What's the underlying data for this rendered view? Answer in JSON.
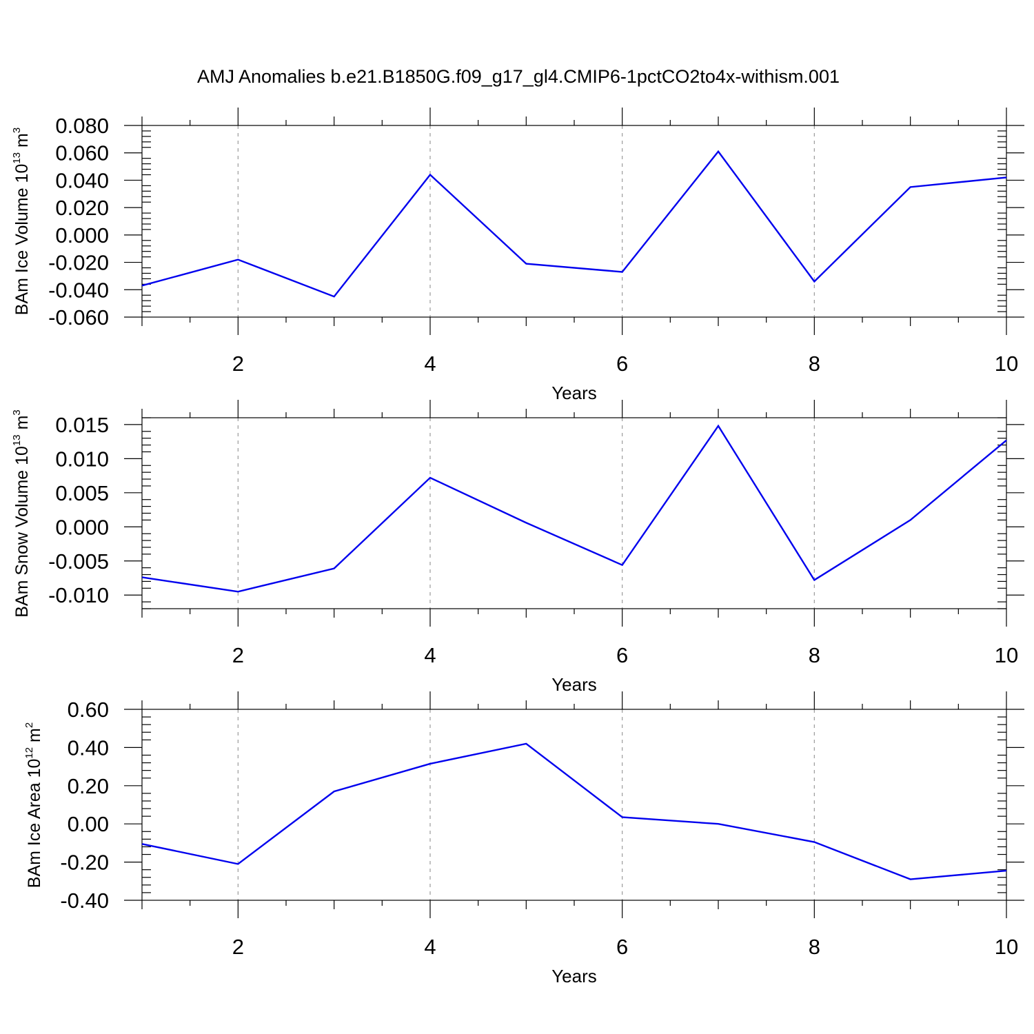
{
  "title": "AMJ Anomalies b.e21.B1850G.f09_g17_gl4.CMIP6-1pctCO2to4x-withism.001",
  "colors": {
    "line": "#0000ee",
    "grid": "#9a9a9a",
    "axes": "#000000"
  },
  "chart_data": [
    {
      "type": "line",
      "xlabel": "Years",
      "ylabel": {
        "text": "BAm Ice Volume 10",
        "exp": "13",
        "unit": " m",
        "unit_exp": "3"
      },
      "x": [
        1,
        2,
        3,
        4,
        5,
        6,
        7,
        8,
        9,
        10
      ],
      "values": [
        -0.037,
        -0.018,
        -0.045,
        0.044,
        -0.021,
        -0.027,
        0.061,
        -0.034,
        0.035,
        0.042
      ],
      "xlim": [
        1,
        10
      ],
      "ylim": [
        -0.06,
        0.08
      ],
      "yticks": [
        -0.06,
        -0.04,
        -0.02,
        0.0,
        0.02,
        0.04,
        0.06,
        0.08
      ],
      "ytick_labels": [
        "-0.060",
        "-0.040",
        "-0.020",
        "0.000",
        "0.020",
        "0.040",
        "0.060",
        "0.080"
      ],
      "xticks": [
        2,
        4,
        6,
        8,
        10
      ],
      "xtick_labels": [
        "2",
        "4",
        "6",
        "8",
        "10"
      ]
    },
    {
      "type": "line",
      "xlabel": "Years",
      "ylabel": {
        "text": "BAm Snow Volume 10",
        "exp": "13",
        "unit": " m",
        "unit_exp": "3"
      },
      "x": [
        1,
        2,
        3,
        4,
        5,
        6,
        7,
        8,
        9,
        10
      ],
      "values": [
        -0.0074,
        -0.0095,
        -0.0061,
        0.0072,
        0.0006,
        -0.0056,
        0.0148,
        -0.0078,
        0.001,
        0.0127
      ],
      "xlim": [
        1,
        10
      ],
      "ylim": [
        -0.012,
        0.016
      ],
      "yticks": [
        -0.01,
        -0.005,
        0.0,
        0.005,
        0.01,
        0.015
      ],
      "ytick_labels": [
        "-0.010",
        "-0.005",
        "0.000",
        "0.005",
        "0.010",
        "0.015"
      ],
      "xticks": [
        2,
        4,
        6,
        8,
        10
      ],
      "xtick_labels": [
        "2",
        "4",
        "6",
        "8",
        "10"
      ]
    },
    {
      "type": "line",
      "xlabel": "Years",
      "ylabel": {
        "text": "BAm Ice Area 10",
        "exp": "12",
        "unit": " m",
        "unit_exp": "2"
      },
      "x": [
        1,
        2,
        3,
        4,
        5,
        6,
        7,
        8,
        9,
        10
      ],
      "values": [
        -0.105,
        -0.21,
        0.17,
        0.315,
        0.42,
        0.035,
        0.0,
        -0.095,
        -0.29,
        -0.245
      ],
      "xlim": [
        1,
        10
      ],
      "ylim": [
        -0.4,
        0.6
      ],
      "yticks": [
        -0.4,
        -0.2,
        0.0,
        0.2,
        0.4,
        0.6
      ],
      "ytick_labels": [
        "-0.40",
        "-0.20",
        "0.00",
        "0.20",
        "0.40",
        "0.60"
      ],
      "xticks": [
        2,
        4,
        6,
        8,
        10
      ],
      "xtick_labels": [
        "2",
        "4",
        "6",
        "8",
        "10"
      ]
    }
  ]
}
